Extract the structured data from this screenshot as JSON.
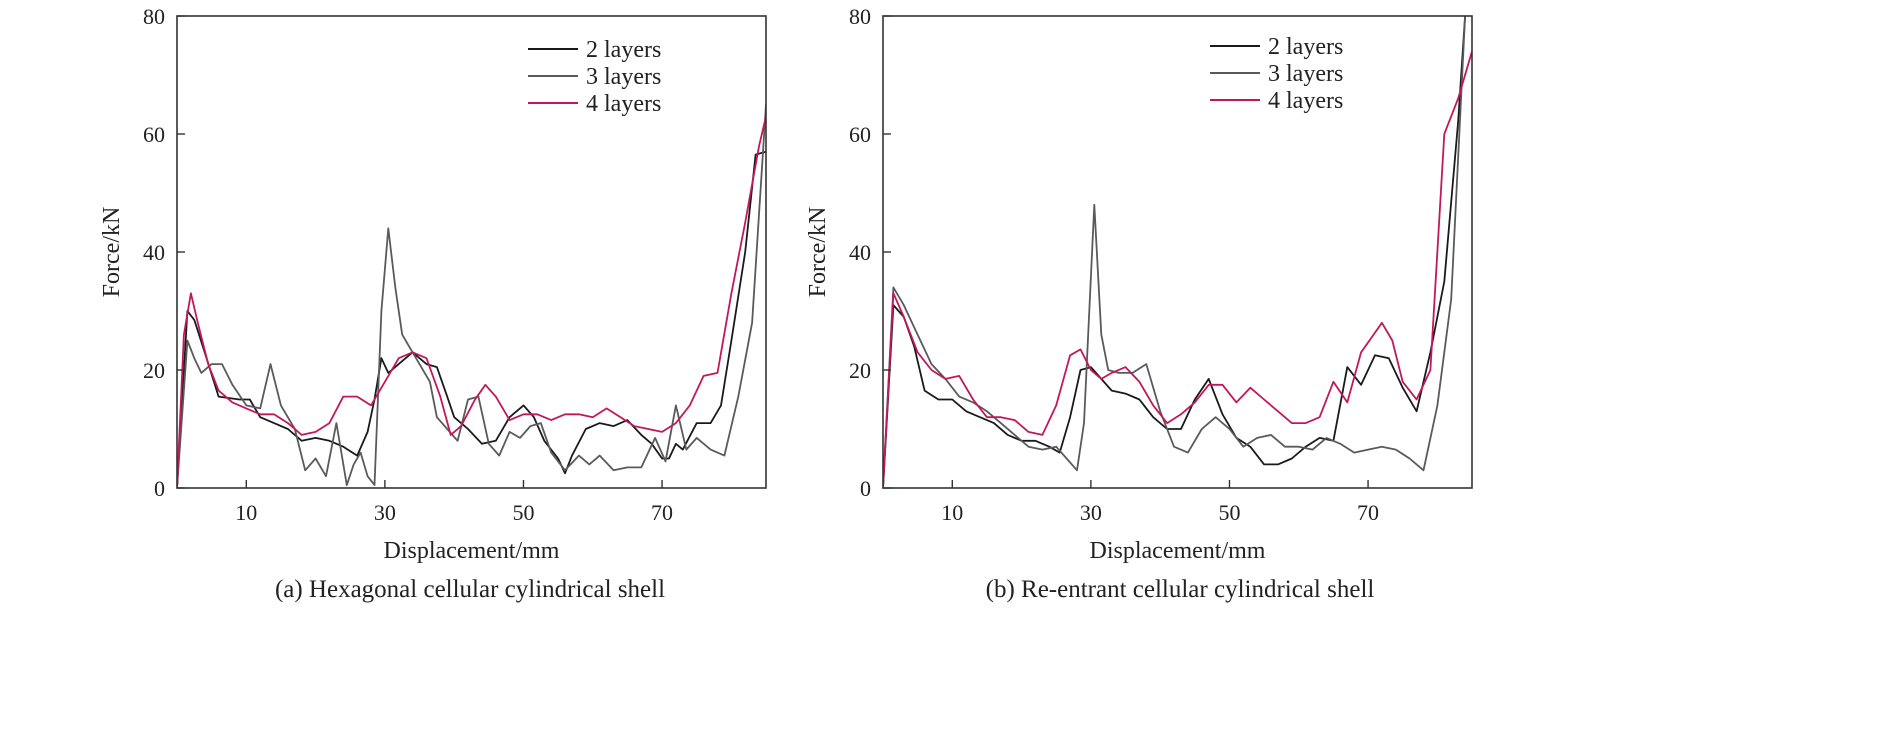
{
  "chart_data": [
    {
      "type": "line",
      "caption": "(a) Hexagonal cellular cylindrical shell",
      "xlabel": "Displacement/mm",
      "ylabel": "Force/kN",
      "xlim": [
        0,
        85
      ],
      "ylim": [
        0,
        80
      ],
      "xticks": [
        10,
        30,
        50,
        70
      ],
      "yticks": [
        0,
        20,
        40,
        60,
        80
      ],
      "grid": false,
      "legend_position": "top-right",
      "series": [
        {
          "name": "2 layers",
          "color": "#1a1a1a",
          "x": [
            0,
            1.5,
            2.5,
            4,
            6,
            9,
            10.5,
            12,
            14,
            16,
            18,
            20,
            22,
            24,
            26,
            27.5,
            28.5,
            29.5,
            30.5,
            32,
            34,
            36,
            37.5,
            39,
            40,
            42,
            44,
            46,
            48,
            50,
            51.5,
            53,
            55,
            56,
            57,
            59,
            61,
            63,
            65,
            67,
            68.5,
            70,
            71,
            72,
            73,
            75,
            77,
            78.5,
            80,
            82,
            83.5,
            85
          ],
          "y": [
            0,
            30,
            28.5,
            23,
            15.5,
            15,
            15,
            12,
            11,
            10,
            8,
            8.5,
            8,
            7,
            5.5,
            9.5,
            15,
            22,
            19.5,
            21,
            23,
            21,
            20.5,
            15.5,
            12,
            10,
            7.5,
            8,
            12,
            14,
            12,
            8,
            5,
            2.5,
            5.5,
            10,
            11,
            10.5,
            11.5,
            9,
            7.5,
            5,
            5,
            7.5,
            6.5,
            11,
            11,
            14,
            25,
            40,
            56.5,
            57
          ]
        },
        {
          "name": "3 layers",
          "color": "#5a5a5a",
          "x": [
            0,
            1.5,
            2.5,
            3.5,
            5,
            6.5,
            8,
            10,
            12,
            13.5,
            15,
            17,
            18.5,
            20,
            21.5,
            23,
            24.5,
            25.5,
            26.5,
            27.5,
            28.5,
            29.5,
            30.5,
            31.5,
            32.5,
            33.5,
            35,
            36.5,
            37.5,
            39,
            40.5,
            42,
            43.5,
            45,
            46.5,
            48,
            49.5,
            51,
            52.5,
            54,
            56,
            58,
            59.5,
            61,
            63,
            65,
            67,
            69,
            70.5,
            72,
            73.5,
            75,
            77,
            79,
            81,
            83,
            85
          ],
          "y": [
            0,
            25,
            22,
            19.5,
            21,
            21,
            17.5,
            14,
            13.5,
            21,
            14,
            10,
            3,
            5,
            2,
            11,
            0.5,
            4,
            6,
            2,
            0.5,
            30,
            44,
            34,
            26,
            24,
            21,
            18,
            12,
            10,
            8,
            15,
            15.5,
            7.5,
            5.5,
            9.5,
            8.5,
            10.5,
            11,
            6,
            3,
            5.5,
            4,
            5.5,
            3,
            3.5,
            3.5,
            8.5,
            4.5,
            14,
            6.5,
            8.5,
            6.5,
            5.5,
            15.5,
            28,
            65
          ]
        },
        {
          "name": "4 layers",
          "color": "#c2185b",
          "x": [
            0,
            1,
            2,
            3,
            4.5,
            6,
            8,
            10,
            12,
            14,
            16,
            18,
            20,
            22,
            24,
            26,
            28,
            30,
            32,
            34,
            36,
            38,
            39.5,
            41,
            43,
            44.5,
            46,
            48,
            50,
            52,
            54,
            56,
            58,
            60,
            62,
            64,
            66,
            68,
            70,
            72,
            74,
            76,
            78,
            80,
            82,
            84,
            85
          ],
          "y": [
            0,
            26,
            33,
            28,
            21,
            16.5,
            14.5,
            13.5,
            12.5,
            12.5,
            11,
            9,
            9.5,
            11,
            15.5,
            15.5,
            14,
            18,
            22,
            23,
            22,
            15.5,
            9,
            10.5,
            15,
            17.5,
            15.5,
            11.5,
            12.5,
            12.5,
            11.5,
            12.5,
            12.5,
            12,
            13.5,
            12,
            10.5,
            10,
            9.5,
            11,
            14,
            19,
            19.5,
            33,
            45,
            58,
            63
          ]
        }
      ]
    },
    {
      "type": "line",
      "caption": "(b) Re-entrant cellular cylindrical shell",
      "xlabel": "Displacement/mm",
      "ylabel": "Force/kN",
      "xlim": [
        0,
        85
      ],
      "ylim": [
        0,
        80
      ],
      "xticks": [
        10,
        30,
        50,
        70
      ],
      "yticks": [
        0,
        20,
        40,
        60,
        80
      ],
      "grid": false,
      "legend_position": "top-right",
      "series": [
        {
          "name": "2 layers",
          "color": "#1a1a1a",
          "x": [
            0,
            1.5,
            3,
            4.5,
            6,
            8,
            10,
            12,
            14,
            16,
            18,
            20,
            22,
            24,
            25.5,
            27,
            28.5,
            30,
            31.5,
            33,
            35,
            37,
            39,
            41,
            43,
            45,
            47,
            49,
            51,
            53,
            55,
            57,
            59,
            61,
            63,
            65,
            67,
            69,
            71,
            73,
            75,
            77,
            79,
            81,
            83,
            84
          ],
          "y": [
            0,
            31,
            29,
            24,
            16.5,
            15,
            15,
            13,
            12,
            11,
            9,
            8,
            8,
            7,
            6,
            12,
            20,
            20.5,
            18.5,
            16.5,
            16,
            15,
            12,
            10,
            10,
            15,
            18.5,
            12.5,
            8.5,
            7,
            4,
            4,
            5,
            7,
            8.5,
            8,
            20.5,
            17.5,
            22.5,
            22,
            17,
            13,
            23,
            35,
            62,
            80
          ]
        },
        {
          "name": "3 layers",
          "color": "#5a5a5a",
          "x": [
            0,
            1.5,
            3,
            5,
            7,
            9,
            11,
            13,
            15,
            17,
            19,
            21,
            23,
            25,
            26.5,
            28,
            29,
            30.5,
            31.5,
            32.5,
            34,
            36,
            38,
            40,
            42,
            44,
            46,
            48,
            50,
            52,
            54,
            56,
            58,
            60,
            62,
            64,
            66,
            68,
            70,
            72,
            74,
            76,
            78,
            80,
            82,
            84
          ],
          "y": [
            0,
            34,
            31,
            26,
            21,
            18.5,
            15.5,
            14.5,
            13,
            11,
            9,
            7,
            6.5,
            7,
            5,
            3,
            11,
            48,
            26,
            20,
            19.5,
            19.5,
            21,
            13,
            7,
            6,
            10,
            12,
            10,
            7,
            8.5,
            9,
            7,
            7,
            6.5,
            8.5,
            7.5,
            6,
            6.5,
            7,
            6.5,
            5,
            3,
            14,
            32,
            80
          ]
        },
        {
          "name": "4 layers",
          "color": "#c2185b",
          "x": [
            0,
            1.5,
            3,
            5,
            7,
            9,
            11,
            13,
            15,
            17,
            19,
            21,
            23,
            25,
            27,
            28.5,
            30,
            31.5,
            33,
            35,
            37,
            39,
            41,
            43,
            45,
            47,
            49,
            51,
            53,
            55,
            57,
            59,
            61,
            63,
            65,
            67,
            69,
            70.5,
            72,
            73.5,
            75,
            77,
            79,
            81,
            83,
            85
          ],
          "y": [
            0,
            33,
            29,
            23,
            20,
            18.5,
            19,
            15,
            12,
            12,
            11.5,
            9.5,
            9,
            14,
            22.5,
            23.5,
            20,
            18.5,
            19.5,
            20.5,
            18,
            14,
            11,
            12.5,
            14.5,
            17.5,
            17.5,
            14.5,
            17,
            15,
            13,
            11,
            11,
            12,
            18,
            14.5,
            23,
            25.5,
            28,
            25,
            18,
            15,
            20,
            60,
            66,
            74
          ]
        }
      ]
    }
  ]
}
